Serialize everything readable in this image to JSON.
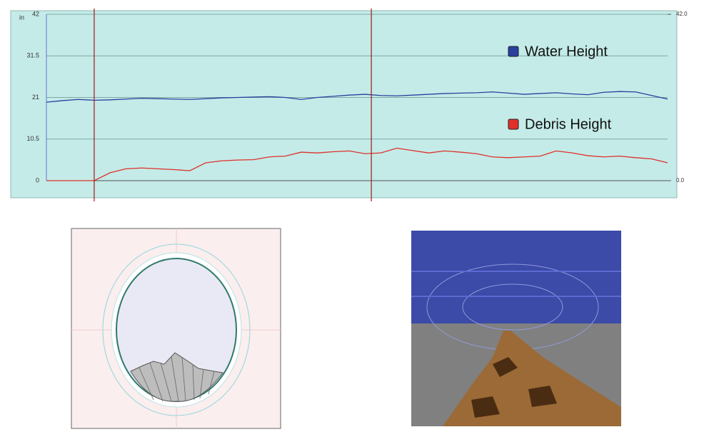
{
  "chart_data": {
    "type": "line",
    "y_unit_label": "in",
    "series": [
      {
        "name": "Water Height",
        "color": "#2b3f9e",
        "values": [
          19.8,
          20.2,
          20.5,
          20.3,
          20.4,
          20.6,
          20.8,
          20.7,
          20.6,
          20.5,
          20.7,
          20.9,
          21.0,
          21.1,
          21.2,
          21.0,
          20.5,
          21.0,
          21.3,
          21.6,
          21.8,
          21.5,
          21.4,
          21.6,
          21.8,
          22.0,
          22.1,
          22.2,
          22.4,
          22.1,
          21.8,
          22.0,
          22.2,
          21.9,
          21.7,
          22.3,
          22.5,
          22.4,
          21.5,
          20.6
        ]
      },
      {
        "name": "Debris Height",
        "color": "#e0302a",
        "values": [
          0,
          0,
          0,
          0,
          2.0,
          3.0,
          3.2,
          3.0,
          2.8,
          2.5,
          4.5,
          5.0,
          5.2,
          5.3,
          6.0,
          6.2,
          7.2,
          7.0,
          7.3,
          7.5,
          6.8,
          7.0,
          8.2,
          7.6,
          7.0,
          7.5,
          7.2,
          6.8,
          6.0,
          5.8,
          6.0,
          6.2,
          7.5,
          7.0,
          6.3,
          6.0,
          6.2,
          5.8,
          5.5,
          4.5
        ]
      }
    ],
    "cursor_positions": [
      3,
      20.4
    ],
    "ylim": [
      0,
      42
    ],
    "yticks": [
      0,
      10.5,
      21,
      31.5,
      42
    ],
    "y2lim": [
      0,
      42
    ],
    "y2ticks": [
      {
        "value": 0,
        "label": "0.0"
      },
      {
        "value": 42,
        "label": "42.0"
      }
    ],
    "grid": true
  }
}
